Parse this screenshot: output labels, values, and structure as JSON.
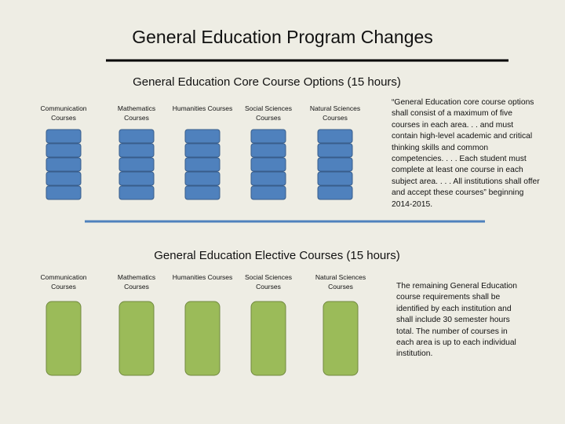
{
  "header": {
    "title": "General Education Program Changes"
  },
  "core": {
    "title": "General Education Core Course Options (15 hours)",
    "columns": [
      "Communication Courses",
      "Mathematics Courses",
      "Humanities Courses",
      "Social Sciences Courses",
      "Natural Sciences Courses"
    ],
    "note": "“General Education core course options shall consist of a maximum of five courses in each area. . . and must contain high-level academic and critical thinking skills and common competencies. . . . Each student must complete at least one course in each subject area. . . . All institutions shall offer and accept these courses” beginning 2014-2015."
  },
  "elective": {
    "title": "General Education Elective Courses (15 hours)",
    "columns": [
      "Communication Courses",
      "Mathematics Courses",
      "Humanities Courses",
      "Social Sciences Courses",
      "Natural Sciences Courses"
    ],
    "note": "The remaining General Education course requirements shall be identified by each institution and shall include 30 semester hours total. The number of courses in each area is up to each individual institution."
  }
}
